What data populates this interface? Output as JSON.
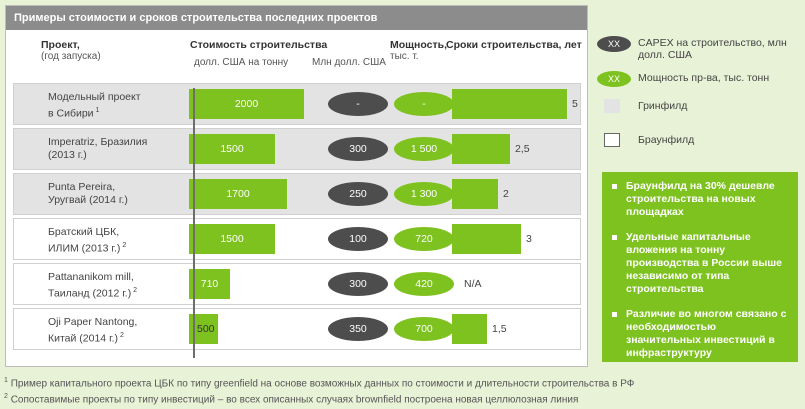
{
  "title": "Примеры стоимости и сроков строительства последних проектов",
  "headers": {
    "project": "Проект,",
    "project_sub": "(год запуска)",
    "cost": "Стоимость строительства",
    "cost_per_ton": "долл. США на тонну",
    "cost_total": "Млн долл. США",
    "capacity": "Мощность,",
    "capacity_sub": "тыс. т.",
    "duration": "Сроки строительства, лет"
  },
  "legend": {
    "capex_tag": "XX",
    "capex": "CAPEX на строительство, млн долл. США",
    "capacity_tag": "XX",
    "capacity": "Мощность пр-ва, тыс. тонн",
    "greenfield": "Гринфилд",
    "brownfield": "Браунфилд"
  },
  "info": [
    "Браунфилд на 30% дешевле строительства на новых площадках",
    "Удельные капитальные вложения на тонну производства в России выше независимо от типа строительства",
    "Различие во многом связано с необходимостью значительных инвестиций в инфраструктуру"
  ],
  "footnotes": [
    {
      "mark": "1",
      "text": "Пример капитального проекта ЦБК по типу greenfield на основе возможных данных по стоимости и длительности строительства в РФ"
    },
    {
      "mark": "2",
      "text": "Сопоставимые проекты по типу инвестиций – во всех описанных случаях brownfield построена новая целлюлозная линия"
    }
  ],
  "colors": {
    "green": "#7dc21e",
    "dark": "#4d4d4d",
    "grey": "#8c8c8c"
  },
  "chart_data": {
    "type": "bar",
    "categories": [
      "Модельный проект в Сибири",
      "Imperatriz, Бразилия (2013 г.)",
      "Punta Pereira, Уругвай (2014 г.)",
      "Братский ЦБК, ИЛИМ (2013 г.)",
      "Pattananikom mill, Таиланд (2012 г.)",
      "Oji Paper Nantong, Китай (2014 г.)"
    ],
    "rows": [
      {
        "line1": "Модельный проект",
        "line2": "в Сибири",
        "sup": "1",
        "type": "greenfield",
        "cost": 2000,
        "cost_label": "2000",
        "capex": "-",
        "capacity": "-",
        "years": 5,
        "years_label": "5"
      },
      {
        "line1": "Imperatriz, Бразилия",
        "line2": "(2013 г.)",
        "sup": "",
        "type": "greenfield",
        "cost": 1500,
        "cost_label": "1500",
        "capex": "300",
        "capacity": "1 500",
        "years": 2.5,
        "years_label": "2,5"
      },
      {
        "line1": "Punta Pereira,",
        "line2": "Уругвай (2014 г.)",
        "sup": "",
        "type": "greenfield",
        "cost": 1700,
        "cost_label": "1700",
        "capex": "250",
        "capacity": "1 300",
        "years": 2,
        "years_label": "2"
      },
      {
        "line1": "Братский ЦБК,",
        "line2": "ИЛИМ (2013 г.)",
        "sup": "2",
        "type": "brownfield",
        "cost": 1500,
        "cost_label": "1500",
        "capex": "100",
        "capacity": "720",
        "years": 3,
        "years_label": "3"
      },
      {
        "line1": "Pattananikom mill,",
        "line2": "Таиланд (2012 г.)",
        "sup": "2",
        "type": "brownfield",
        "cost": 710,
        "cost_label": "710",
        "capex": "300",
        "capacity": "420",
        "years": null,
        "years_label": "N/A"
      },
      {
        "line1": "Oji Paper Nantong,",
        "line2": "Китай (2014 г.)",
        "sup": "2",
        "type": "brownfield",
        "cost": 500,
        "cost_label": "500",
        "capex": "350",
        "capacity": "700",
        "years": 1.5,
        "years_label": "1,5"
      }
    ],
    "cost_unit": "долл. США на тонну",
    "years_unit": "лет",
    "cost_max": 2000,
    "years_max": 5
  }
}
